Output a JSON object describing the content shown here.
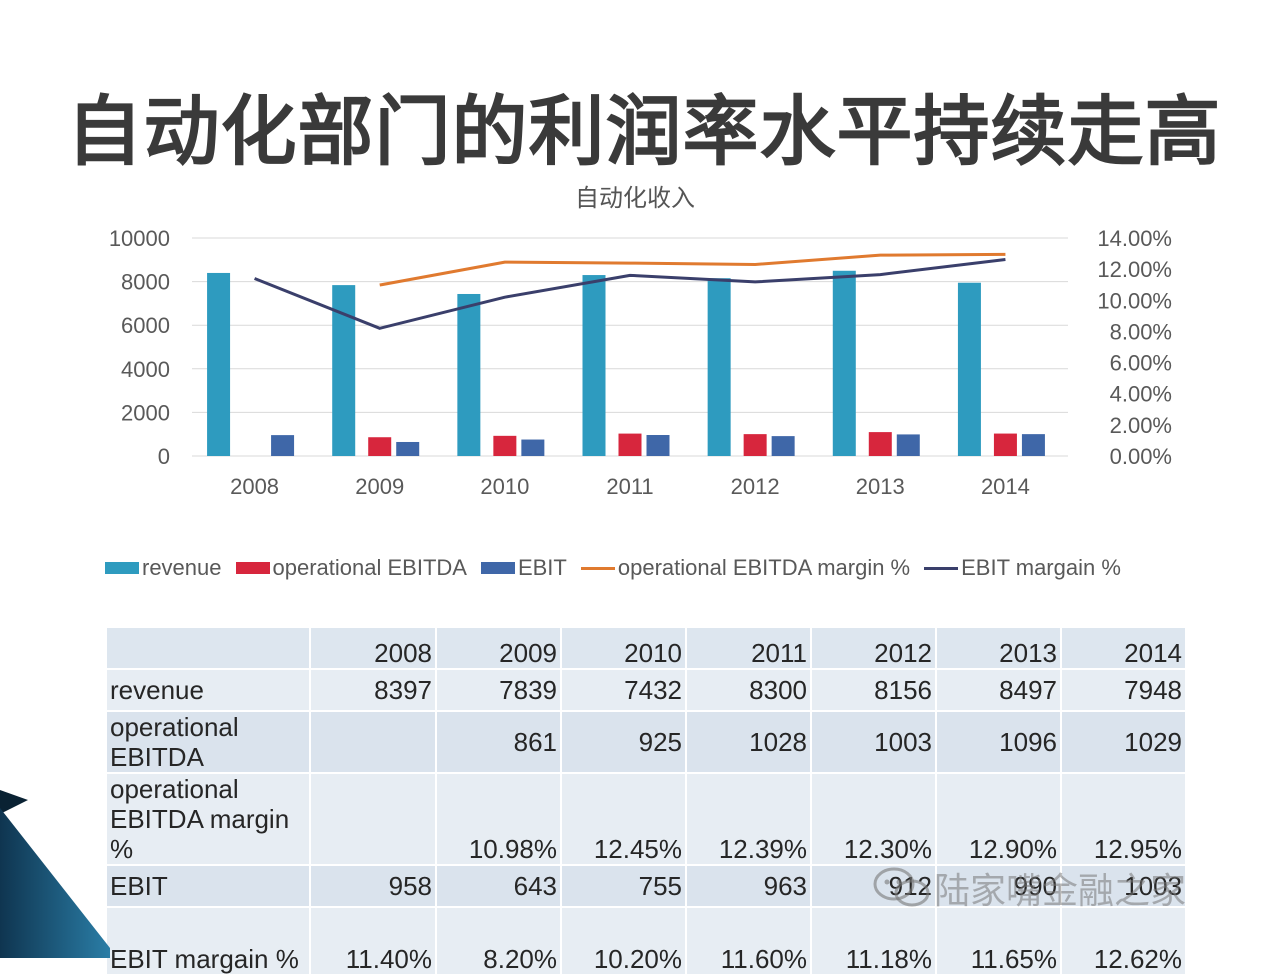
{
  "slide": {
    "title": "自动化部门的利润率水平持续走高"
  },
  "chart_data": {
    "type": "bar",
    "title": "自动化收入",
    "categories": [
      "2008",
      "2009",
      "2010",
      "2011",
      "2012",
      "2013",
      "2014"
    ],
    "y_left": {
      "ticks": [
        "0",
        "2000",
        "4000",
        "6000",
        "8000",
        "10000"
      ],
      "ylim": [
        0,
        10000
      ]
    },
    "y_right": {
      "ticks": [
        "0.00%",
        "2.00%",
        "4.00%",
        "6.00%",
        "8.00%",
        "10.00%",
        "12.00%",
        "14.00%"
      ],
      "ylim": [
        0,
        14
      ]
    },
    "series": [
      {
        "name": "revenue",
        "kind": "bar",
        "axis": "left",
        "color": "#2e9bbf",
        "values": [
          8397,
          7839,
          7432,
          8300,
          8156,
          8497,
          7948
        ]
      },
      {
        "name": "operational EBITDA",
        "kind": "bar",
        "axis": "left",
        "color": "#d7263d",
        "values": [
          null,
          861,
          925,
          1028,
          1003,
          1096,
          1029
        ]
      },
      {
        "name": "EBIT",
        "kind": "bar",
        "axis": "left",
        "color": "#3f67a8",
        "values": [
          958,
          643,
          755,
          963,
          912,
          990,
          1003
        ]
      },
      {
        "name": "operational EBITDA margin %",
        "kind": "line",
        "axis": "right",
        "color": "#e07a2f",
        "values": [
          null,
          10.98,
          12.45,
          12.39,
          12.3,
          12.9,
          12.95
        ]
      },
      {
        "name": "EBIT margain %",
        "kind": "line",
        "axis": "right",
        "color": "#3a3f6b",
        "values": [
          11.4,
          8.2,
          10.2,
          11.6,
          11.18,
          11.65,
          12.62
        ]
      }
    ],
    "grid": true,
    "legend_position": "bottom"
  },
  "table": {
    "header": [
      "",
      "2008",
      "2009",
      "2010",
      "2011",
      "2012",
      "2013",
      "2014"
    ],
    "rows": [
      {
        "label": "revenue",
        "cells": [
          "8397",
          "7839",
          "7432",
          "8300",
          "8156",
          "8497",
          "7948"
        ]
      },
      {
        "label": "operational EBITDA",
        "cells": [
          "",
          "861",
          "925",
          "1028",
          "1003",
          "1096",
          "1029"
        ]
      },
      {
        "label": "operational EBITDA margin %",
        "cells": [
          "",
          "10.98%",
          "12.45%",
          "12.39%",
          "12.30%",
          "12.90%",
          "12.95%"
        ]
      },
      {
        "label": "EBIT",
        "cells": [
          "958",
          "643",
          "755",
          "963",
          "912",
          "990",
          "1003"
        ]
      },
      {
        "label": "EBIT margain %",
        "cells": [
          "11.40%",
          "8.20%",
          "10.20%",
          "11.60%",
          "11.18%",
          "11.65%",
          "12.62%"
        ]
      }
    ]
  },
  "watermark": {
    "icon": "wechat-icon",
    "text": "陆家嘴金融之家"
  }
}
